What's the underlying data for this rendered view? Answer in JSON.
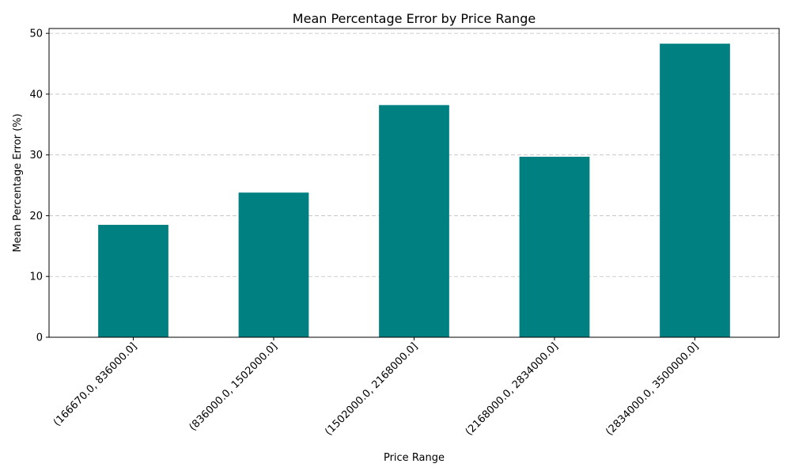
{
  "chart_data": {
    "type": "bar",
    "title": "Mean Percentage Error by Price Range",
    "xlabel": "Price Range",
    "ylabel": "Mean Percentage Error (%)",
    "categories": [
      "(166670.0, 836000.0]",
      "(836000.0, 1502000.0]",
      "(1502000.0, 2168000.0]",
      "(2168000.0, 2834000.0]",
      "(2834000.0, 3500000.0]"
    ],
    "values": [
      18.5,
      23.8,
      38.2,
      29.7,
      48.3
    ],
    "ylim": [
      0,
      50.8
    ],
    "yticks": [
      0,
      10,
      20,
      30,
      40,
      50
    ],
    "grid": "y-dashed",
    "bar_color": "#008080"
  }
}
